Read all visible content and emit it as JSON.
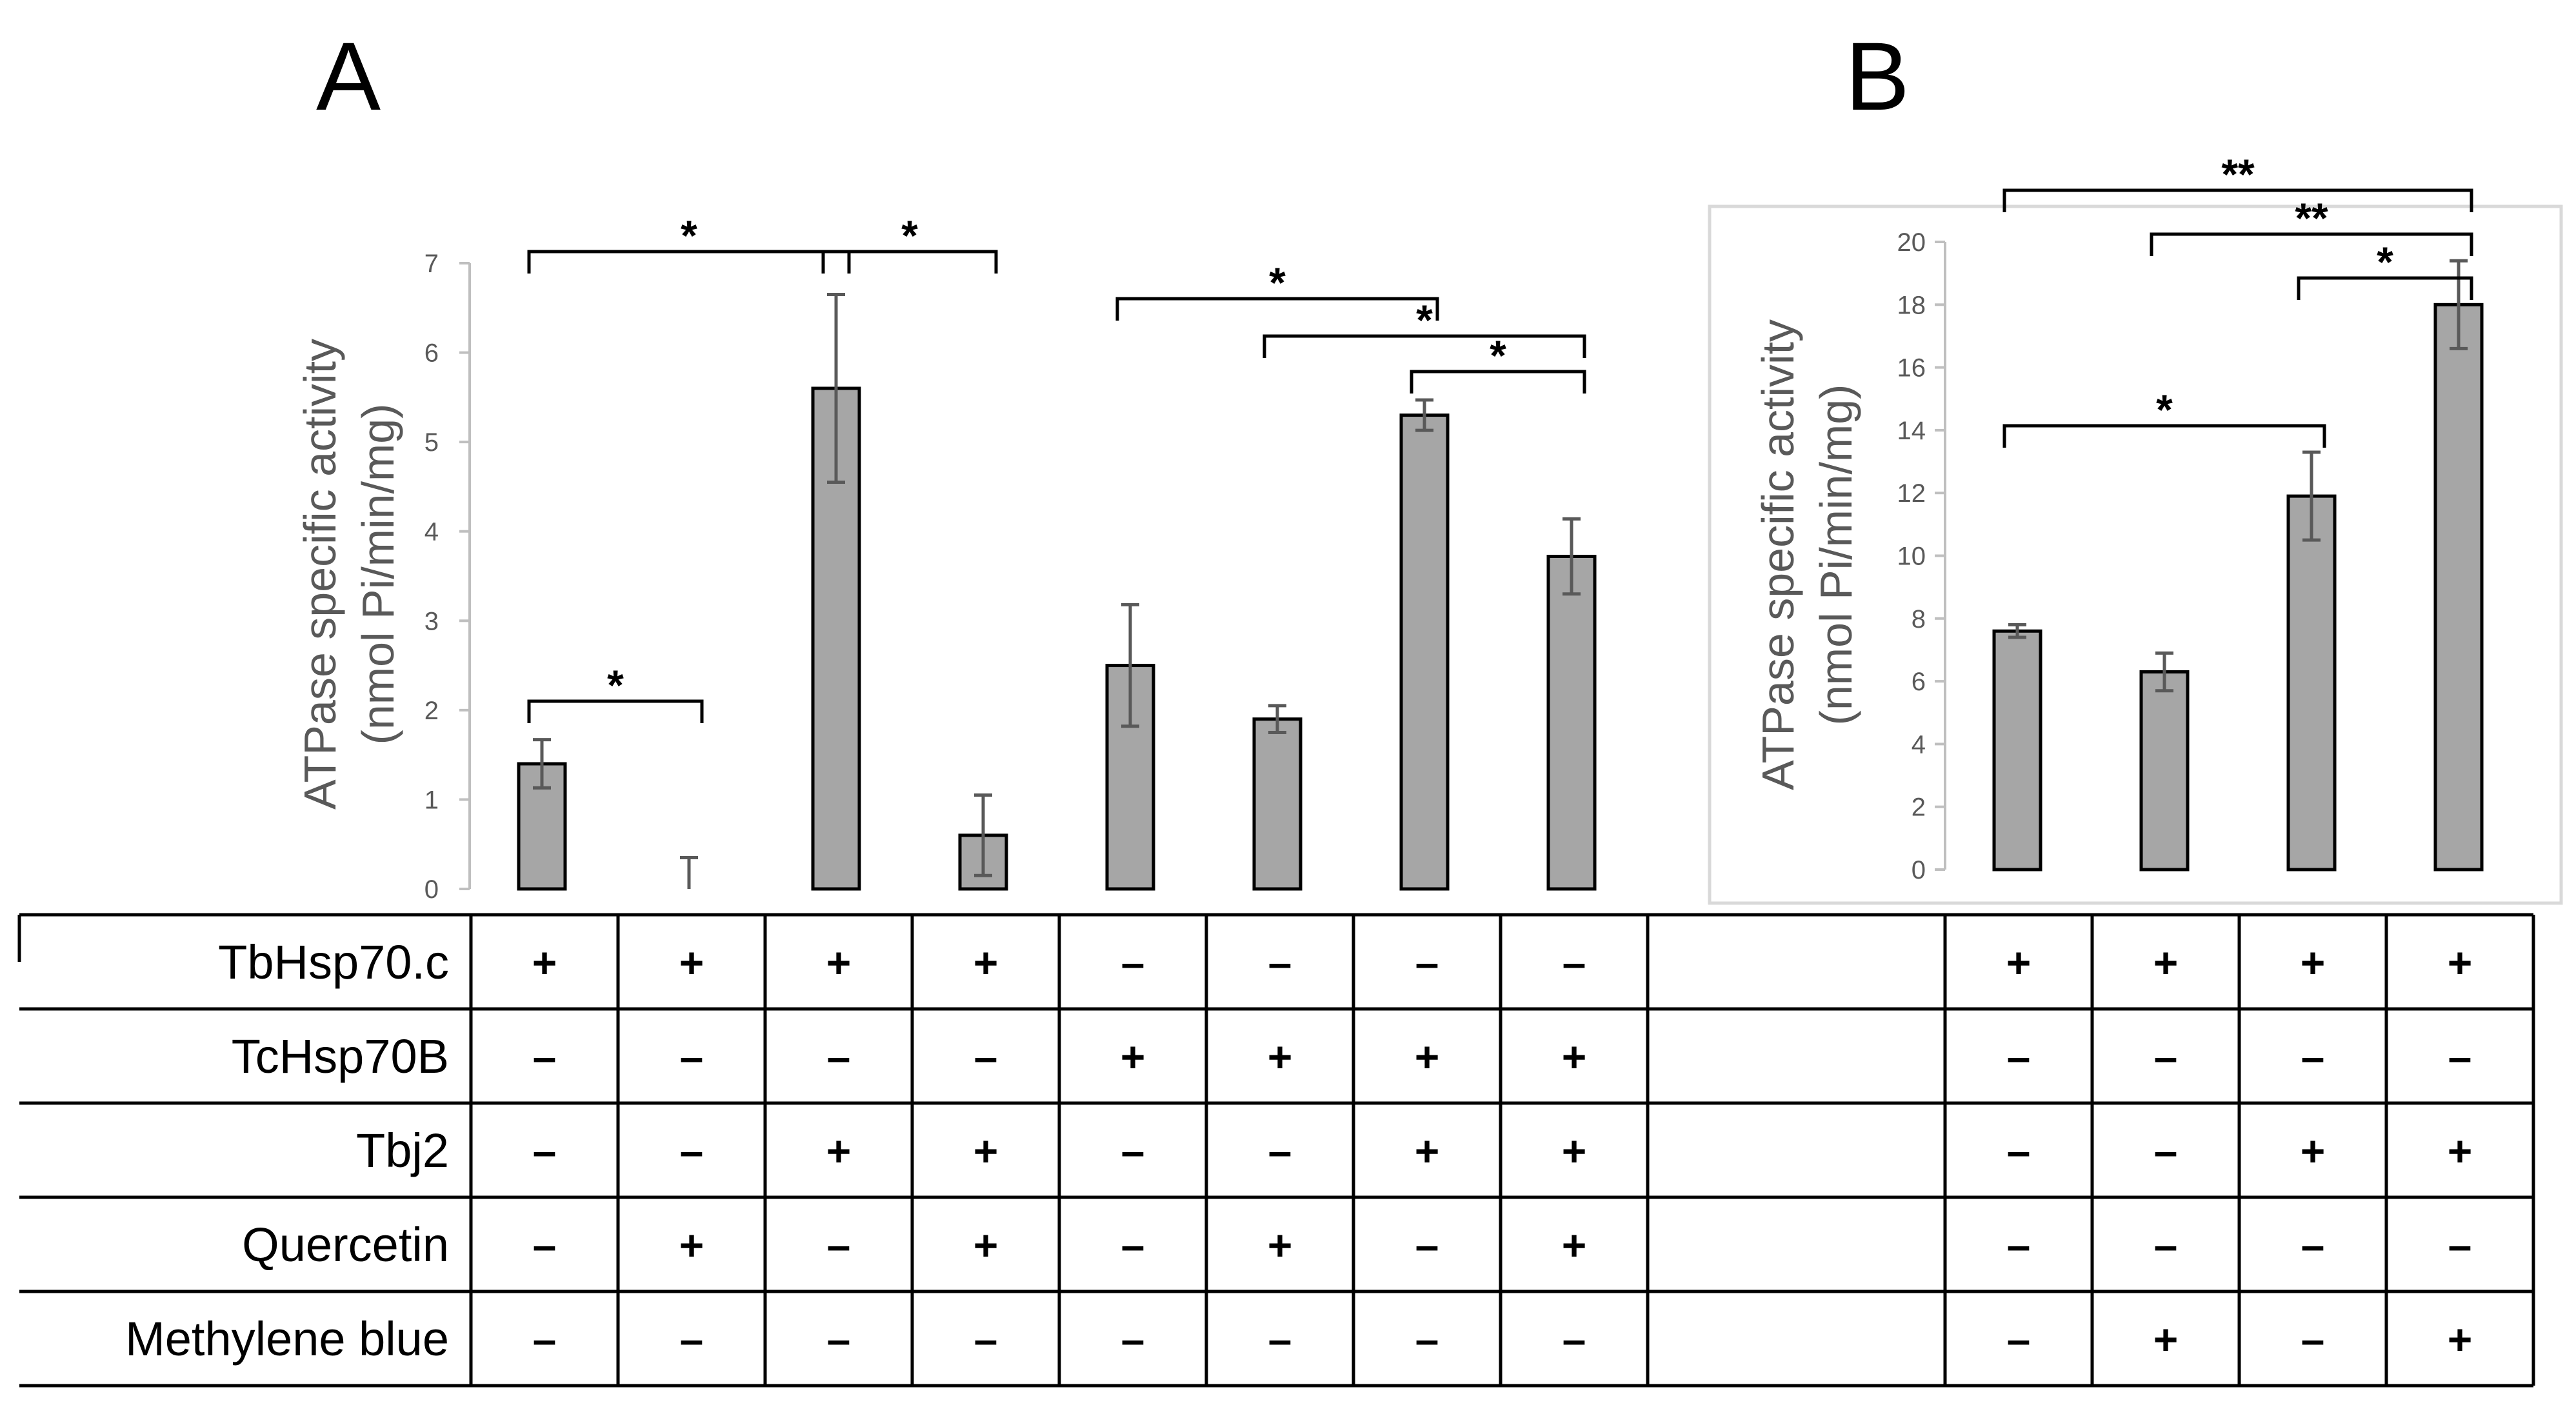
{
  "chart_data": [
    {
      "panel": "A",
      "type": "bar",
      "ylabel_line1": "ATPase specific activity",
      "ylabel_line2": "(nmol Pi/min/mg)",
      "ylim": [
        0,
        7
      ],
      "yticks": [
        0,
        1,
        2,
        3,
        4,
        5,
        6,
        7
      ],
      "values": [
        1.4,
        0.0,
        5.6,
        0.6,
        2.5,
        1.9,
        5.3,
        3.72
      ],
      "errors": [
        0.27,
        0.35,
        1.05,
        0.45,
        0.68,
        0.15,
        0.17,
        0.42
      ],
      "significance": [
        {
          "from": 0,
          "to": 1,
          "label": "*"
        },
        {
          "from": 0,
          "to": 2,
          "label": "*"
        },
        {
          "from": 2,
          "to": 3,
          "label": "*"
        },
        {
          "from": 4,
          "to": 6,
          "label": "*"
        },
        {
          "from": 5,
          "to": 7,
          "label": "*"
        },
        {
          "from": 6,
          "to": 7,
          "label": "*"
        }
      ]
    },
    {
      "panel": "B",
      "type": "bar",
      "ylabel_line1": "ATPase specific activity",
      "ylabel_line2": "(nmol Pi/min/mg)",
      "ylim": [
        0,
        20
      ],
      "yticks": [
        0,
        2,
        4,
        6,
        8,
        10,
        12,
        14,
        16,
        18,
        20
      ],
      "values": [
        7.6,
        6.3,
        11.9,
        18.0
      ],
      "errors": [
        0.2,
        0.6,
        1.4,
        1.4
      ],
      "significance": [
        {
          "from": 0,
          "to": 2,
          "label": "*"
        },
        {
          "from": 2,
          "to": 3,
          "label": "*"
        },
        {
          "from": 1,
          "to": 3,
          "label": "**"
        },
        {
          "from": 0,
          "to": 3,
          "label": "**"
        }
      ]
    }
  ],
  "table": {
    "rows": [
      "TbHsp70.c",
      "TcHsp70B",
      "Tbj2",
      "Quercetin",
      "Methylene blue"
    ],
    "panel_a": [
      [
        "+",
        "+",
        "+",
        "+",
        "–",
        "–",
        "–",
        "–"
      ],
      [
        "–",
        "–",
        "–",
        "–",
        "+",
        "+",
        "+",
        "+"
      ],
      [
        "–",
        "–",
        "+",
        "+",
        "–",
        "–",
        "+",
        "+"
      ],
      [
        "–",
        "+",
        "–",
        "+",
        "–",
        "+",
        "–",
        "+"
      ],
      [
        "–",
        "–",
        "–",
        "–",
        "–",
        "–",
        "–",
        "–"
      ]
    ],
    "panel_b": [
      [
        "+",
        "+",
        "+",
        "+"
      ],
      [
        "–",
        "–",
        "–",
        "–"
      ],
      [
        "–",
        "–",
        "+",
        "+"
      ],
      [
        "–",
        "–",
        "–",
        "–"
      ],
      [
        "–",
        "+",
        "–",
        "+"
      ]
    ]
  }
}
